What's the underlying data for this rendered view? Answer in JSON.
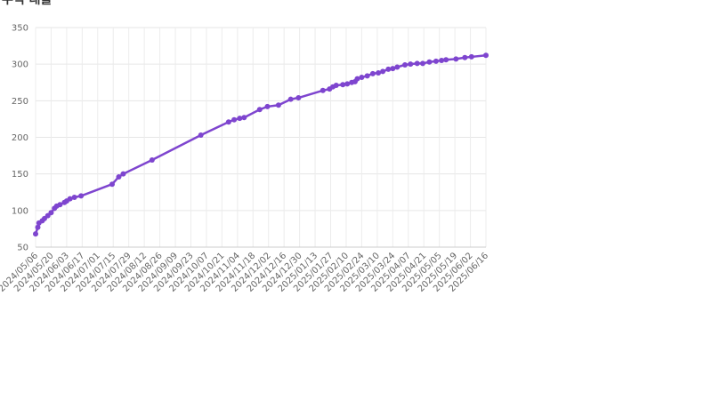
{
  "chart_data": {
    "type": "line",
    "title": "누적 대출",
    "x": [
      "2024/05/06",
      "2024/05/08",
      "2024/05/09",
      "2024/05/12",
      "2024/05/14",
      "2024/05/17",
      "2024/05/20",
      "2024/05/23",
      "2024/05/25",
      "2024/05/28",
      "2024/06/01",
      "2024/06/03",
      "2024/06/06",
      "2024/06/10",
      "2024/06/16",
      "2024/07/14",
      "2024/07/20",
      "2024/07/24",
      "2024/08/19",
      "2024/10/02",
      "2024/10/27",
      "2024/11/01",
      "2024/11/06",
      "2024/11/10",
      "2024/11/24",
      "2024/12/01",
      "2024/12/11",
      "2024/12/22",
      "2024/12/29",
      "2025/01/20",
      "2025/01/26",
      "2025/01/29",
      "2025/02/01",
      "2025/02/07",
      "2025/02/11",
      "2025/02/15",
      "2025/02/18",
      "2025/02/20",
      "2025/02/24",
      "2025/03/01",
      "2025/03/06",
      "2025/03/11",
      "2025/03/15",
      "2025/03/20",
      "2025/03/24",
      "2025/03/28",
      "2025/04/04",
      "2025/04/09",
      "2025/04/15",
      "2025/04/20",
      "2025/04/26",
      "2025/05/02",
      "2025/05/07",
      "2025/05/11",
      "2025/05/20",
      "2025/05/28",
      "2025/06/03",
      "2025/06/16"
    ],
    "series": [
      {
        "name": "대출",
        "color": "#7e45cf",
        "values": [
          68,
          77,
          83,
          86,
          89,
          93,
          97,
          103,
          106,
          108,
          111,
          113,
          116,
          118,
          120,
          136,
          146,
          150,
          169,
          203,
          221,
          224,
          226,
          227,
          238,
          242,
          244,
          252,
          254,
          264,
          266,
          269,
          271,
          272,
          273,
          275,
          276,
          280,
          282,
          284,
          287,
          288,
          290,
          293,
          294,
          296,
          299,
          300,
          301,
          301,
          303,
          304,
          305,
          306,
          307,
          309,
          310,
          312
        ]
      }
    ],
    "xlim": [
      "2024/05/06",
      "2025/06/16"
    ],
    "xticks": [
      "2024/05/06",
      "2024/05/20",
      "2024/06/03",
      "2024/06/17",
      "2024/07/01",
      "2024/07/15",
      "2024/07/29",
      "2024/08/12",
      "2024/08/26",
      "2024/09/09",
      "2024/09/23",
      "2024/10/07",
      "2024/10/21",
      "2024/11/04",
      "2024/11/18",
      "2024/12/02",
      "2024/12/16",
      "2024/12/30",
      "2025/01/13",
      "2025/01/27",
      "2025/02/10",
      "2025/02/24",
      "2025/03/10",
      "2025/03/24",
      "2025/04/07",
      "2025/04/21",
      "2025/05/05",
      "2025/05/19",
      "2025/06/02",
      "2025/06/16"
    ],
    "ylim": [
      50,
      350
    ],
    "yticks": [
      50,
      100,
      150,
      200,
      250,
      300,
      350
    ],
    "grid": true
  }
}
